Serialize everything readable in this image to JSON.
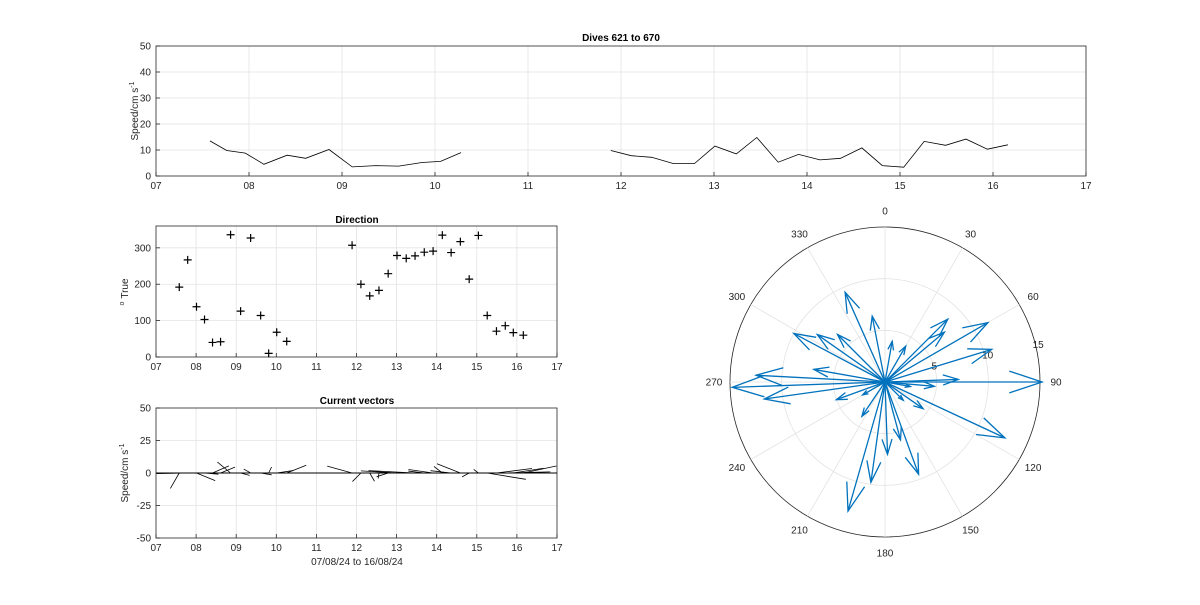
{
  "chart_data": [
    {
      "id": "speed",
      "type": "line",
      "title": "Dives 621 to 670",
      "ylabel": "Speed/cm s",
      "ylabel_sup": "-1",
      "xlabel": "",
      "xlim": [
        7,
        17
      ],
      "ylim": [
        0,
        50
      ],
      "xticks": [
        "07",
        "08",
        "09",
        "10",
        "11",
        "12",
        "13",
        "14",
        "15",
        "16",
        "17"
      ],
      "yticks": [
        0,
        10,
        20,
        30,
        40,
        50
      ],
      "grid": true,
      "color": "#000000",
      "segments": [
        {
          "x": [
            7.58,
            7.76,
            7.96,
            8.16,
            8.41,
            8.61,
            8.86,
            9.11,
            9.36,
            9.61,
            9.86,
            10.06,
            10.28
          ],
          "y": [
            13.5,
            9.8,
            8.8,
            4.5,
            8.0,
            6.8,
            10.2,
            3.5,
            4.0,
            3.8,
            5.2,
            5.6,
            9.0
          ]
        },
        {
          "x": [
            11.89,
            12.11,
            12.33,
            12.56,
            12.79,
            13.01,
            13.24,
            13.46,
            13.69,
            13.91,
            14.14,
            14.36,
            14.59,
            14.81,
            15.04,
            15.26,
            15.49,
            15.71,
            15.94,
            16.16
          ],
          "y": [
            9.8,
            7.8,
            7.2,
            4.8,
            4.8,
            11.5,
            8.5,
            14.8,
            5.3,
            8.3,
            6.2,
            6.8,
            10.8,
            4.0,
            3.4,
            13.3,
            11.8,
            14.2,
            10.3,
            12.0
          ]
        }
      ]
    },
    {
      "id": "direction",
      "type": "scatter",
      "title": "Direction",
      "ylabel": "True",
      "ylabel_sup": "o",
      "xlabel": "",
      "xlim": [
        7,
        17
      ],
      "ylim": [
        0,
        360
      ],
      "xticks": [
        "07",
        "08",
        "09",
        "10",
        "11",
        "12",
        "13",
        "14",
        "15",
        "16",
        "17"
      ],
      "yticks": [
        0,
        100,
        200,
        300
      ],
      "grid": true,
      "marker": "+",
      "color": "#000000",
      "x": [
        7.58,
        7.79,
        8.01,
        8.21,
        8.41,
        8.61,
        8.86,
        9.11,
        9.36,
        9.61,
        9.81,
        10.01,
        10.26,
        11.89,
        12.11,
        12.33,
        12.56,
        12.79,
        13.01,
        13.24,
        13.46,
        13.69,
        13.91,
        14.14,
        14.36,
        14.59,
        14.81,
        15.04,
        15.26,
        15.49,
        15.71,
        15.91,
        16.16
      ],
      "y": [
        192,
        267,
        138,
        103,
        40,
        42,
        336,
        126,
        327,
        114,
        10,
        68,
        43,
        307,
        200,
        168,
        183,
        229,
        279,
        271,
        278,
        288,
        291,
        335,
        287,
        317,
        214,
        334,
        114,
        71,
        86,
        67,
        60
      ]
    },
    {
      "id": "vectors",
      "type": "line",
      "subtype": "feather",
      "title": "Current vectors",
      "ylabel": "Speed/cm s",
      "ylabel_sup": "-1",
      "xlabel": "07/08/24 to 16/08/24",
      "xlim": [
        7,
        17
      ],
      "ylim": [
        -50,
        50
      ],
      "xticks": [
        "07",
        "08",
        "09",
        "10",
        "11",
        "12",
        "13",
        "14",
        "15",
        "16",
        "17"
      ],
      "yticks": [
        -50,
        -25,
        0,
        25,
        50
      ],
      "grid": true,
      "color": "#000000"
    },
    {
      "id": "polar",
      "type": "scatter",
      "subtype": "compass",
      "title": "",
      "rlim": [
        0,
        15
      ],
      "rticks": [
        "5",
        "10",
        "15"
      ],
      "theta_ticks": [
        "0",
        "30",
        "60",
        "90",
        "120",
        "150",
        "180",
        "210",
        "240",
        "270",
        "300",
        "330"
      ],
      "color": "#0072bd",
      "vectors": [
        {
          "dir": 90,
          "speed": 15.2
        },
        {
          "dir": 115,
          "speed": 12.8
        },
        {
          "dir": 73,
          "speed": 10.8
        },
        {
          "dir": 60,
          "speed": 11.5
        },
        {
          "dir": 45,
          "speed": 8.6
        },
        {
          "dir": 50,
          "speed": 7.5
        },
        {
          "dir": 88,
          "speed": 7.1
        },
        {
          "dir": 95,
          "speed": 4.8
        },
        {
          "dir": 125,
          "speed": 4.5
        },
        {
          "dir": 165,
          "speed": 5.8
        },
        {
          "dir": 196,
          "speed": 13.0
        },
        {
          "dir": 188,
          "speed": 9.8
        },
        {
          "dir": 160,
          "speed": 9.5
        },
        {
          "dir": 178,
          "speed": 7.0
        },
        {
          "dir": 214,
          "speed": 4.0
        },
        {
          "dir": 250,
          "speed": 5.0
        },
        {
          "dir": 268,
          "speed": 14.8
        },
        {
          "dir": 262,
          "speed": 11.8
        },
        {
          "dir": 273,
          "speed": 12.5
        },
        {
          "dir": 280,
          "speed": 7.0
        },
        {
          "dir": 298,
          "speed": 10.0
        },
        {
          "dir": 305,
          "speed": 8.0
        },
        {
          "dir": 315,
          "speed": 6.5
        },
        {
          "dir": 336,
          "speed": 9.5
        },
        {
          "dir": 349,
          "speed": 6.5
        },
        {
          "dir": 10,
          "speed": 4.0
        },
        {
          "dir": 30,
          "speed": 4.0
        },
        {
          "dir": 240,
          "speed": 2.5
        },
        {
          "dir": 135,
          "speed": 2.5
        },
        {
          "dir": 100,
          "speed": 2.5
        }
      ]
    }
  ]
}
